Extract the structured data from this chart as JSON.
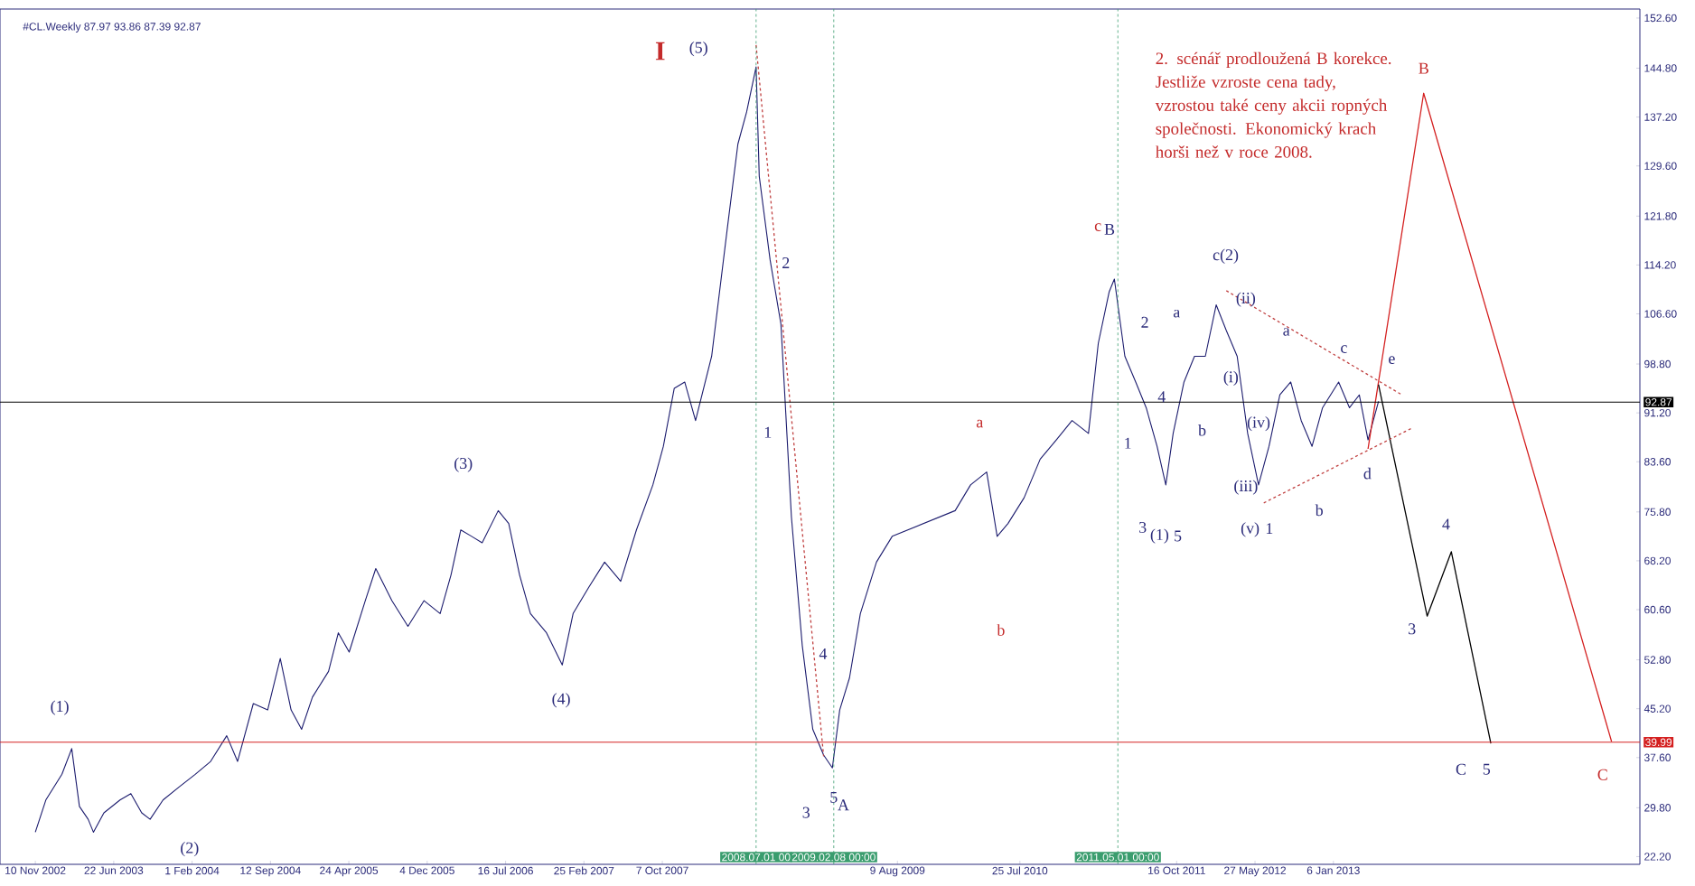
{
  "chart_data": {
    "type": "line",
    "title": "#CL.Weekly  87.97 93.86 87.39 92.87",
    "xlim": [
      "2002-08-01",
      "2015-06-01"
    ],
    "ylim": [
      21,
      154
    ],
    "xticks": [
      {
        "value": "2002-11-10",
        "label": "10 Nov 2002"
      },
      {
        "value": "2003-06-22",
        "label": "22 Jun 2003"
      },
      {
        "value": "2004-02-01",
        "label": "1 Feb 2004"
      },
      {
        "value": "2004-09-12",
        "label": "12 Sep 2004"
      },
      {
        "value": "2005-04-24",
        "label": "24 Apr 2005"
      },
      {
        "value": "2005-12-04",
        "label": "4 Dec 2005"
      },
      {
        "value": "2006-07-16",
        "label": "16 Jul 2006"
      },
      {
        "value": "2007-02-25",
        "label": "25 Feb 2007"
      },
      {
        "value": "2007-10-07",
        "label": "7 Oct 2007"
      },
      {
        "value": "2009-08-09",
        "label": "9 Aug 2009"
      },
      {
        "value": "2010-07-25",
        "label": "25 Jul 2010"
      },
      {
        "value": "2011-10-16",
        "label": "16 Oct 2011"
      },
      {
        "value": "2012-05-27",
        "label": "27 May 2012"
      },
      {
        "value": "2013-01-06",
        "label": "6 Jan 2013"
      }
    ],
    "yticks": [
      {
        "value": 22.2,
        "label": "22.20"
      },
      {
        "value": 29.8,
        "label": "29.80"
      },
      {
        "value": 37.6,
        "label": "37.60"
      },
      {
        "value": 45.2,
        "label": "45.20"
      },
      {
        "value": 52.8,
        "label": "52.80"
      },
      {
        "value": 60.6,
        "label": "60.60"
      },
      {
        "value": 68.2,
        "label": "68.20"
      },
      {
        "value": 75.8,
        "label": "75.80"
      },
      {
        "value": 83.6,
        "label": "83.60"
      },
      {
        "value": 91.2,
        "label": "91.20"
      },
      {
        "value": 98.8,
        "label": "98.80"
      },
      {
        "value": 106.6,
        "label": "106.60"
      },
      {
        "value": 114.2,
        "label": "114.20"
      },
      {
        "value": 121.8,
        "label": "121.80"
      },
      {
        "value": 129.6,
        "label": "129.60"
      },
      {
        "value": 137.2,
        "label": "137.20"
      },
      {
        "value": 144.8,
        "label": "144.80"
      },
      {
        "value": 152.6,
        "label": "152.60"
      }
    ],
    "series": [
      {
        "color": "#1c1c6e",
        "x": [
          "2002-11-10",
          "2002-12-10",
          "2003-01-25",
          "2003-02-22",
          "2003-03-16",
          "2003-04-10",
          "2003-04-25",
          "2003-05-25",
          "2003-07-10",
          "2003-08-10",
          "2003-09-10",
          "2003-10-04",
          "2003-11-10",
          "2003-12-25",
          "2004-02-10",
          "2004-03-25",
          "2004-05-10",
          "2004-06-10",
          "2004-07-25",
          "2004-09-04",
          "2004-10-10",
          "2004-11-10",
          "2004-12-10",
          "2005-01-10",
          "2005-02-25",
          "2005-03-25",
          "2005-04-25",
          "2005-06-10",
          "2005-07-10",
          "2005-08-25",
          "2005-10-10",
          "2005-11-25",
          "2006-01-10",
          "2006-02-10",
          "2006-03-10",
          "2006-04-10",
          "2006-05-10",
          "2006-06-25",
          "2006-07-25",
          "2006-08-25",
          "2006-09-25",
          "2006-11-10",
          "2006-12-25",
          "2007-01-25",
          "2007-03-10",
          "2007-04-25",
          "2007-06-10",
          "2007-07-25",
          "2007-09-10",
          "2007-10-10",
          "2007-11-10",
          "2007-12-10",
          "2008-01-10",
          "2008-02-25",
          "2008-04-10",
          "2008-05-10",
          "2008-06-04",
          "2008-07-01",
          "2008-07-10",
          "2008-08-10",
          "2008-09-10",
          "2008-10-10",
          "2008-11-10",
          "2008-12-10",
          "2009-01-10",
          "2009-02-04",
          "2009-02-25",
          "2009-03-25",
          "2009-04-25",
          "2009-06-10",
          "2009-07-25",
          "2010-01-21",
          "2010-03-06",
          "2010-04-21",
          "2010-05-21",
          "2010-06-21",
          "2010-08-06",
          "2010-09-21",
          "2010-11-06",
          "2010-12-21",
          "2011-02-06",
          "2011-03-06",
          "2011-04-06",
          "2011-04-21",
          "2011-05-21",
          "2011-06-21",
          "2011-07-21",
          "2011-08-21",
          "2011-09-15",
          "2011-10-06",
          "2011-11-06",
          "2011-12-06",
          "2012-01-06",
          "2012-02-06",
          "2012-03-06",
          "2012-04-06",
          "2012-05-06",
          "2012-06-06",
          "2012-07-06",
          "2012-08-06",
          "2012-09-06",
          "2012-10-06",
          "2012-11-06",
          "2012-12-06",
          "2013-01-21",
          "2013-02-21",
          "2013-03-21",
          "2013-04-15",
          "2013-05-15"
        ],
        "values": [
          26,
          31,
          35,
          39,
          30,
          28,
          26,
          29,
          31,
          32,
          29,
          28,
          31,
          33,
          35,
          37,
          41,
          37,
          46,
          45,
          53,
          45,
          42,
          47,
          51,
          57,
          54,
          62,
          67,
          62,
          58,
          62,
          60,
          66,
          73,
          72,
          71,
          76,
          74,
          66,
          60,
          57,
          52,
          60,
          64,
          68,
          65,
          73,
          80,
          86,
          95,
          96,
          90,
          100,
          120,
          133,
          138,
          145,
          128,
          115,
          105,
          75,
          55,
          42,
          38,
          36,
          45,
          50,
          60,
          68,
          72,
          76,
          80,
          82,
          72,
          74,
          78,
          84,
          87,
          90,
          88,
          102,
          110,
          112,
          100,
          96,
          92,
          86,
          80,
          88,
          96,
          100,
          100,
          108,
          104,
          100,
          88,
          80,
          86,
          94,
          96,
          90,
          86,
          92,
          96,
          92,
          94,
          87,
          93
        ]
      },
      {
        "color": "#d42020",
        "x": [
          "2013-04-15",
          "2013-09-21",
          "2015-03-12"
        ],
        "values": [
          85.6,
          140.9,
          40.1
        ]
      },
      {
        "color": "#000000",
        "x": [
          "2013-05-15",
          "2013-10-01",
          "2013-12-09",
          "2014-04-01"
        ],
        "values": [
          95.6,
          59.6,
          69.6,
          39.8
        ]
      },
      {
        "color": "#c04040",
        "line_style": "dashed",
        "x": [
          "2012-03-06",
          "2013-07-21"
        ],
        "values": [
          110.2,
          94
        ]
      },
      {
        "color": "#c04040",
        "line_style": "dashed",
        "x": [
          "2012-06-21",
          "2013-08-21"
        ],
        "values": [
          77.2,
          88.9
        ]
      },
      {
        "color": "#c04040",
        "line_style": "dashed",
        "x": [
          "2008-07-01",
          "2009-01-10"
        ],
        "values": [
          148.4,
          37.8
        ]
      }
    ],
    "ref_lines": [
      {
        "axis": "y",
        "value": 92.87,
        "label": "92.87",
        "color": "#000000"
      },
      {
        "axis": "y",
        "value": 39.99,
        "label": "39.99",
        "color": "#d42020"
      },
      {
        "axis": "x",
        "value": "2008-07-01",
        "label": "2008.07.01 00",
        "color": "#3a9d6e",
        "line_style": "dashed"
      },
      {
        "axis": "x",
        "value": "2009-02-08",
        "label": "2009.02.08 00:00",
        "color": "#3a9d6e",
        "line_style": "dashed"
      },
      {
        "axis": "x",
        "value": "2011-05-01",
        "label": "2011.05.01 00:00",
        "color": "#3a9d6e",
        "line_style": "dashed"
      }
    ],
    "annotations": [
      "2. scénář prodloužená B korekce. Jestliže vzroste cena tady, vzrostou také ceny akcii ropných společnosti. Ekonomický krach horši než v roce 2008.",
      "I",
      "(5)",
      "(1)",
      "(2)",
      "(3)",
      "(4)",
      "2",
      "1",
      "3",
      "4",
      "5",
      "A",
      "a",
      "b",
      "c",
      "B",
      "2",
      "1",
      "3",
      "4",
      "(1)",
      "5",
      "a",
      "b",
      "c(2)",
      "(ii)",
      "(i)",
      "(iv)",
      "(iii)",
      "(v)",
      "1",
      "a",
      "b",
      "c",
      "e",
      "d",
      "B",
      "4",
      "3",
      "C",
      "5",
      "C"
    ]
  }
}
